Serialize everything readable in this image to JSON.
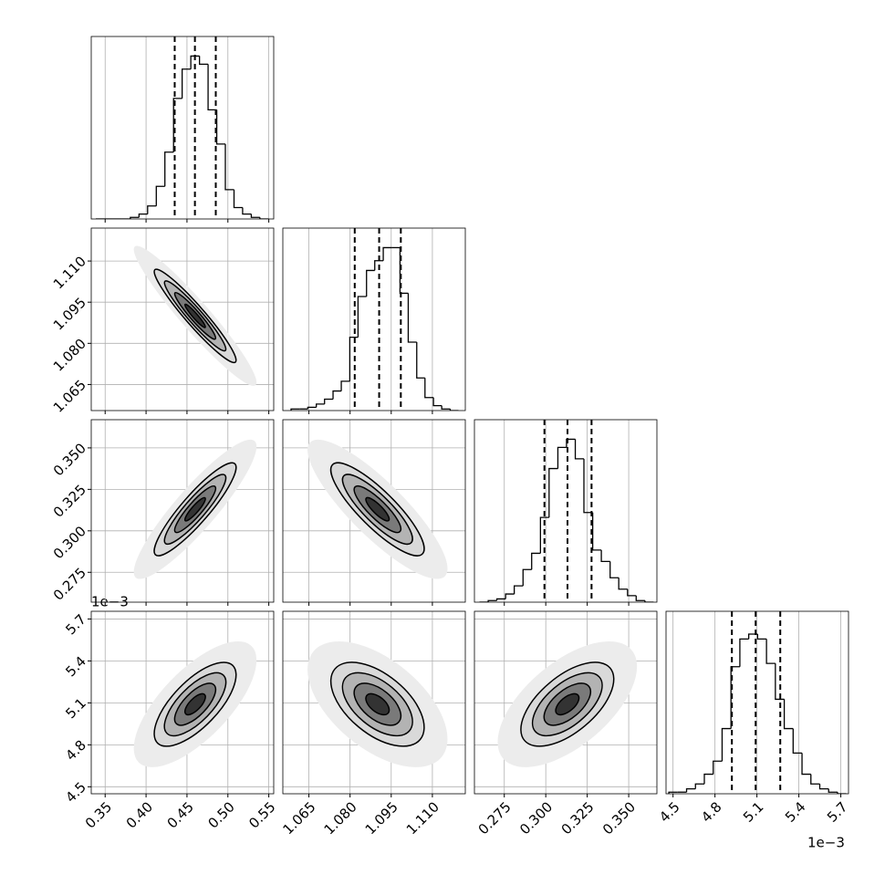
{
  "chart_data": {
    "type": "corner",
    "parameters": [
      {
        "lim": [
          0.333,
          0.556
        ],
        "ticks": [
          0.35,
          {
            "value": 0.4,
            "label": "0.40"
          },
          0.45,
          {
            "value": 0.5,
            "label": "0.50"
          },
          0.55
        ],
        "mean": 0.46,
        "sd": 0.025,
        "quantiles": [
          0.435,
          0.4597,
          0.4852
        ],
        "bins": [
          0.3386,
          0.3492,
          0.3597,
          0.3703,
          0.3808,
          0.3914,
          0.4019,
          0.4125,
          0.423,
          0.4336,
          0.4441,
          0.4547,
          0.4653,
          0.4758,
          0.4864,
          0.4969,
          0.5075,
          0.518,
          0.5286,
          0.5391,
          0.5497
        ],
        "counts": [
          0,
          0,
          0,
          0,
          1,
          3,
          8,
          20,
          41,
          74,
          92,
          100,
          95,
          67,
          46,
          18,
          7,
          3,
          1,
          0
        ],
        "hist_ylim": [
          0,
          112
        ]
      },
      {
        "lim": [
          1.0555,
          1.122
        ],
        "ticks": [
          1.065,
          {
            "value": 1.08,
            "label": "1.080"
          },
          1.095,
          {
            "value": 1.11,
            "label": "1.110"
          }
        ],
        "mean": 1.09,
        "sd": 0.0085,
        "quantiles": [
          1.0817,
          1.0906,
          1.0985
        ],
        "bins": [
          1.0585,
          1.0616,
          1.0646,
          1.0677,
          1.0707,
          1.0738,
          1.0768,
          1.0799,
          1.0829,
          1.086,
          1.089,
          1.0921,
          1.0951,
          1.0982,
          1.1012,
          1.1043,
          1.1073,
          1.1104,
          1.1134,
          1.1165,
          1.1195
        ],
        "counts": [
          1,
          1,
          2,
          4,
          7,
          12,
          18,
          45,
          70,
          86,
          92,
          100,
          100,
          72,
          42,
          20,
          8,
          3,
          1,
          0
        ],
        "hist_ylim": [
          0,
          112
        ]
      },
      {
        "lim": [
          0.257,
          0.367
        ],
        "ticks": [
          0.275,
          {
            "value": 0.3,
            "label": "0.300"
          },
          0.325,
          {
            "value": 0.35,
            "label": "0.350"
          }
        ],
        "mean": 0.313,
        "sd": 0.014,
        "quantiles": [
          0.2992,
          0.3131,
          0.3276
        ],
        "bins": [
          0.26,
          0.2653,
          0.2705,
          0.2758,
          0.281,
          0.2863,
          0.2915,
          0.2968,
          0.302,
          0.3073,
          0.3125,
          0.3178,
          0.323,
          0.3283,
          0.3335,
          0.3388,
          0.344,
          0.3493,
          0.3545,
          0.3598,
          0.365
        ],
        "counts": [
          0,
          1,
          2,
          5,
          10,
          20,
          30,
          52,
          82,
          95,
          100,
          88,
          55,
          32,
          25,
          15,
          8,
          4,
          1,
          0
        ],
        "hist_ylim": [
          0,
          112
        ]
      },
      {
        "lim": [
          4.45,
          5.755
        ],
        "ticks": [
          4.5,
          4.8,
          5.1,
          5.4,
          5.7
        ],
        "offset": "1e−3",
        "mean": 5.09,
        "sd": 0.15,
        "quantiles": [
          4.921,
          5.091,
          5.267
        ],
        "bins": [
          4.47,
          4.5335,
          4.597,
          4.6605,
          4.724,
          4.7875,
          4.851,
          4.9145,
          4.978,
          5.0415,
          5.105,
          5.1685,
          5.232,
          5.2955,
          5.359,
          5.4225,
          5.486,
          5.5495,
          5.613,
          5.6765,
          5.74
        ],
        "counts": [
          1,
          1,
          3,
          6,
          12,
          20,
          40,
          78,
          95,
          98,
          95,
          80,
          58,
          40,
          25,
          12,
          6,
          3,
          1,
          0
        ],
        "hist_ylim": [
          0,
          112
        ]
      }
    ],
    "correlations": [
      [
        -0.95
      ],
      [
        0.9,
        -0.85
      ],
      [
        0.7,
        -0.55,
        0.6
      ]
    ],
    "contour_levels": [
      3,
      2,
      1.5,
      1,
      0.5
    ],
    "contour_fills": [
      "#ececec",
      "#d9d9d9",
      "#b3b3b3",
      "#7a7a7a",
      "#333333"
    ],
    "contour_strokes": [
      "none",
      "#000000",
      "#000000",
      "#000000",
      "#000000"
    ],
    "grid": true
  }
}
